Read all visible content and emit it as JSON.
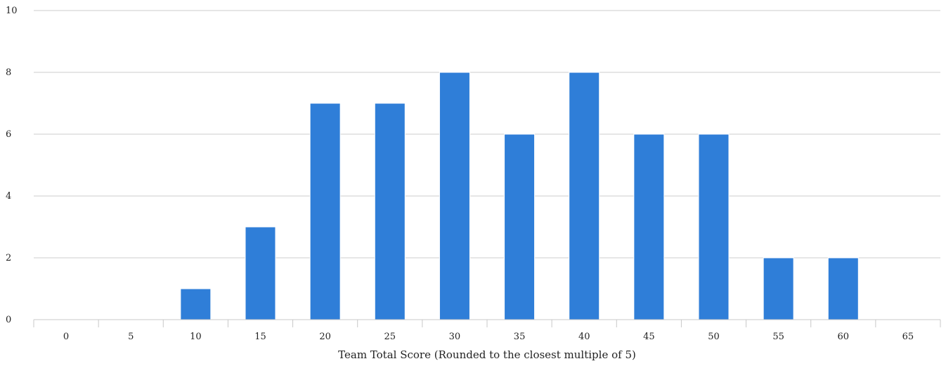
{
  "chart_data": {
    "type": "bar",
    "title": "",
    "xlabel": "Team Total Score (Rounded to the closest multiple of 5)",
    "ylabel": "",
    "categories": [
      "0",
      "5",
      "10",
      "15",
      "20",
      "25",
      "30",
      "35",
      "40",
      "45",
      "50",
      "55",
      "60",
      "65"
    ],
    "values": [
      0,
      0,
      1,
      3,
      7,
      7,
      8,
      6,
      8,
      6,
      6,
      2,
      2,
      0
    ],
    "ylim": [
      0,
      10
    ],
    "yticks": [
      "0",
      "2",
      "4",
      "6",
      "8",
      "10"
    ],
    "grid": true,
    "legend": "none",
    "colors": {
      "bar": "#2f7ed8",
      "grid": "#cccccc",
      "axis": "#c8c8c8"
    }
  }
}
